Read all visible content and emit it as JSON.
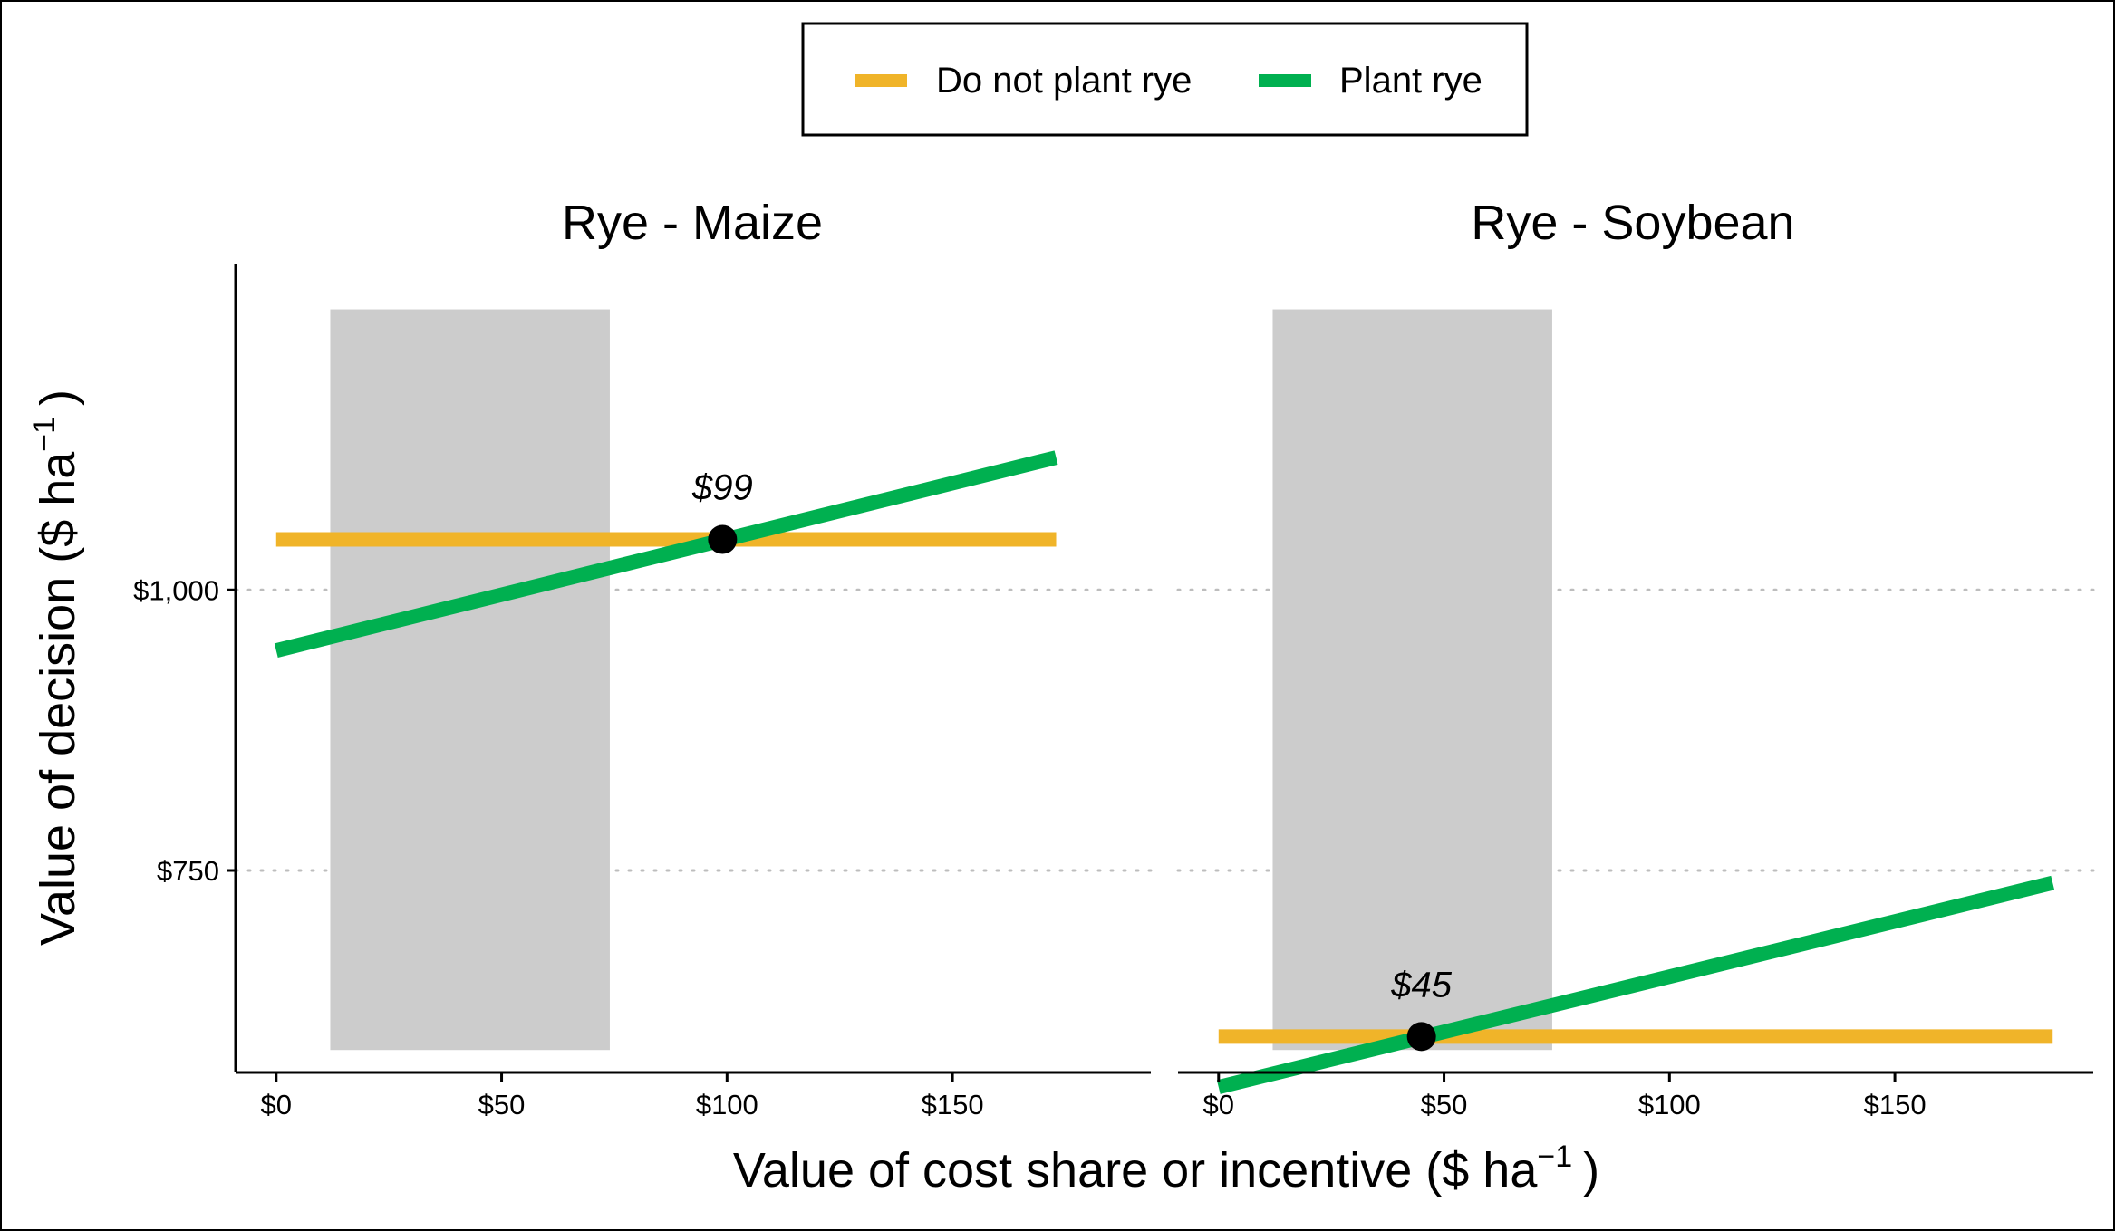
{
  "chart_data": {
    "type": "line",
    "xlabel": "Value of cost share or incentive ($  ha",
    "xlabel_sup": "−1",
    "xlabel_close": ")",
    "ylabel": "Value of decision ($  ha",
    "ylabel_sup": "−1",
    "ylabel_close": ")",
    "ylim": [
      570,
      1290
    ],
    "y_ticks": [
      {
        "value": 750,
        "label": "$750"
      },
      {
        "value": 1000,
        "label": "$1,000"
      }
    ],
    "grid": "dotted horizontal at y ticks",
    "legend": {
      "position": "top",
      "entries": [
        {
          "label": "Do not plant rye",
          "color": "#f0b429"
        },
        {
          "label": "Plant rye",
          "color": "#00b050"
        }
      ]
    },
    "panels": [
      {
        "title": "Rye - Maize",
        "xlim": [
          -9,
          194
        ],
        "x_ticks": [
          {
            "value": 0,
            "label": "$0"
          },
          {
            "value": 50,
            "label": "$50"
          },
          {
            "value": 100,
            "label": "$100"
          },
          {
            "value": 150,
            "label": "$150"
          }
        ],
        "shaded_range": {
          "x": [
            12,
            74
          ],
          "y": [
            590,
            1250
          ]
        },
        "series": [
          {
            "name": "Do not plant rye",
            "x": [
              0,
              173
            ],
            "y": [
              1045,
              1045
            ]
          },
          {
            "name": "Plant rye",
            "x": [
              0,
              173
            ],
            "y": [
              946,
              1118
            ]
          }
        ],
        "crossover": {
          "x": 99,
          "y": 1045,
          "label": "$99"
        }
      },
      {
        "title": "Rye - Soybean",
        "xlim": [
          -9,
          194
        ],
        "x_ticks": [
          {
            "value": 0,
            "label": "$0"
          },
          {
            "value": 50,
            "label": "$50"
          },
          {
            "value": 100,
            "label": "$100"
          },
          {
            "value": 150,
            "label": "$150"
          }
        ],
        "shaded_range": {
          "x": [
            12,
            74
          ],
          "y": [
            590,
            1250
          ]
        },
        "series": [
          {
            "name": "Do not plant rye",
            "x": [
              0,
              185
            ],
            "y": [
              602,
              602
            ]
          },
          {
            "name": "Plant rye",
            "x": [
              0,
              185
            ],
            "y": [
              557,
              739
            ]
          }
        ],
        "crossover": {
          "x": 45,
          "y": 602,
          "label": "$45"
        }
      }
    ]
  },
  "colors": {
    "do_not_plant": "#f0b429",
    "plant": "#00b050",
    "shade": "#cccccc",
    "grid": "#bdbdbd",
    "point": "#000000"
  }
}
